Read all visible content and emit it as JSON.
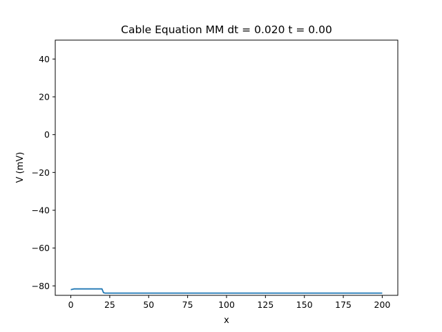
{
  "chart_data": {
    "type": "line",
    "title": "Cable Equation MM dt = 0.020 t = 0.00",
    "xlabel": "x",
    "ylabel": "V (mV)",
    "xlim": [
      -10,
      210
    ],
    "ylim": [
      -85,
      50
    ],
    "x_ticks": [
      0,
      25,
      50,
      75,
      100,
      125,
      150,
      175,
      200
    ],
    "y_ticks": [
      -80,
      -60,
      -40,
      -20,
      0,
      20,
      40
    ],
    "x_tick_labels": [
      "0",
      "25",
      "50",
      "75",
      "100",
      "125",
      "150",
      "175",
      "200"
    ],
    "y_tick_labels": [
      "−80",
      "−60",
      "−40",
      "−20",
      "0",
      "20",
      "40"
    ],
    "grid": false,
    "series": [
      {
        "color": "#1f77b4",
        "x": [
          0,
          2,
          20,
          21,
          22,
          200
        ],
        "y": [
          -82,
          -81.6,
          -81.6,
          -83.6,
          -83.8,
          -83.8
        ]
      }
    ]
  }
}
